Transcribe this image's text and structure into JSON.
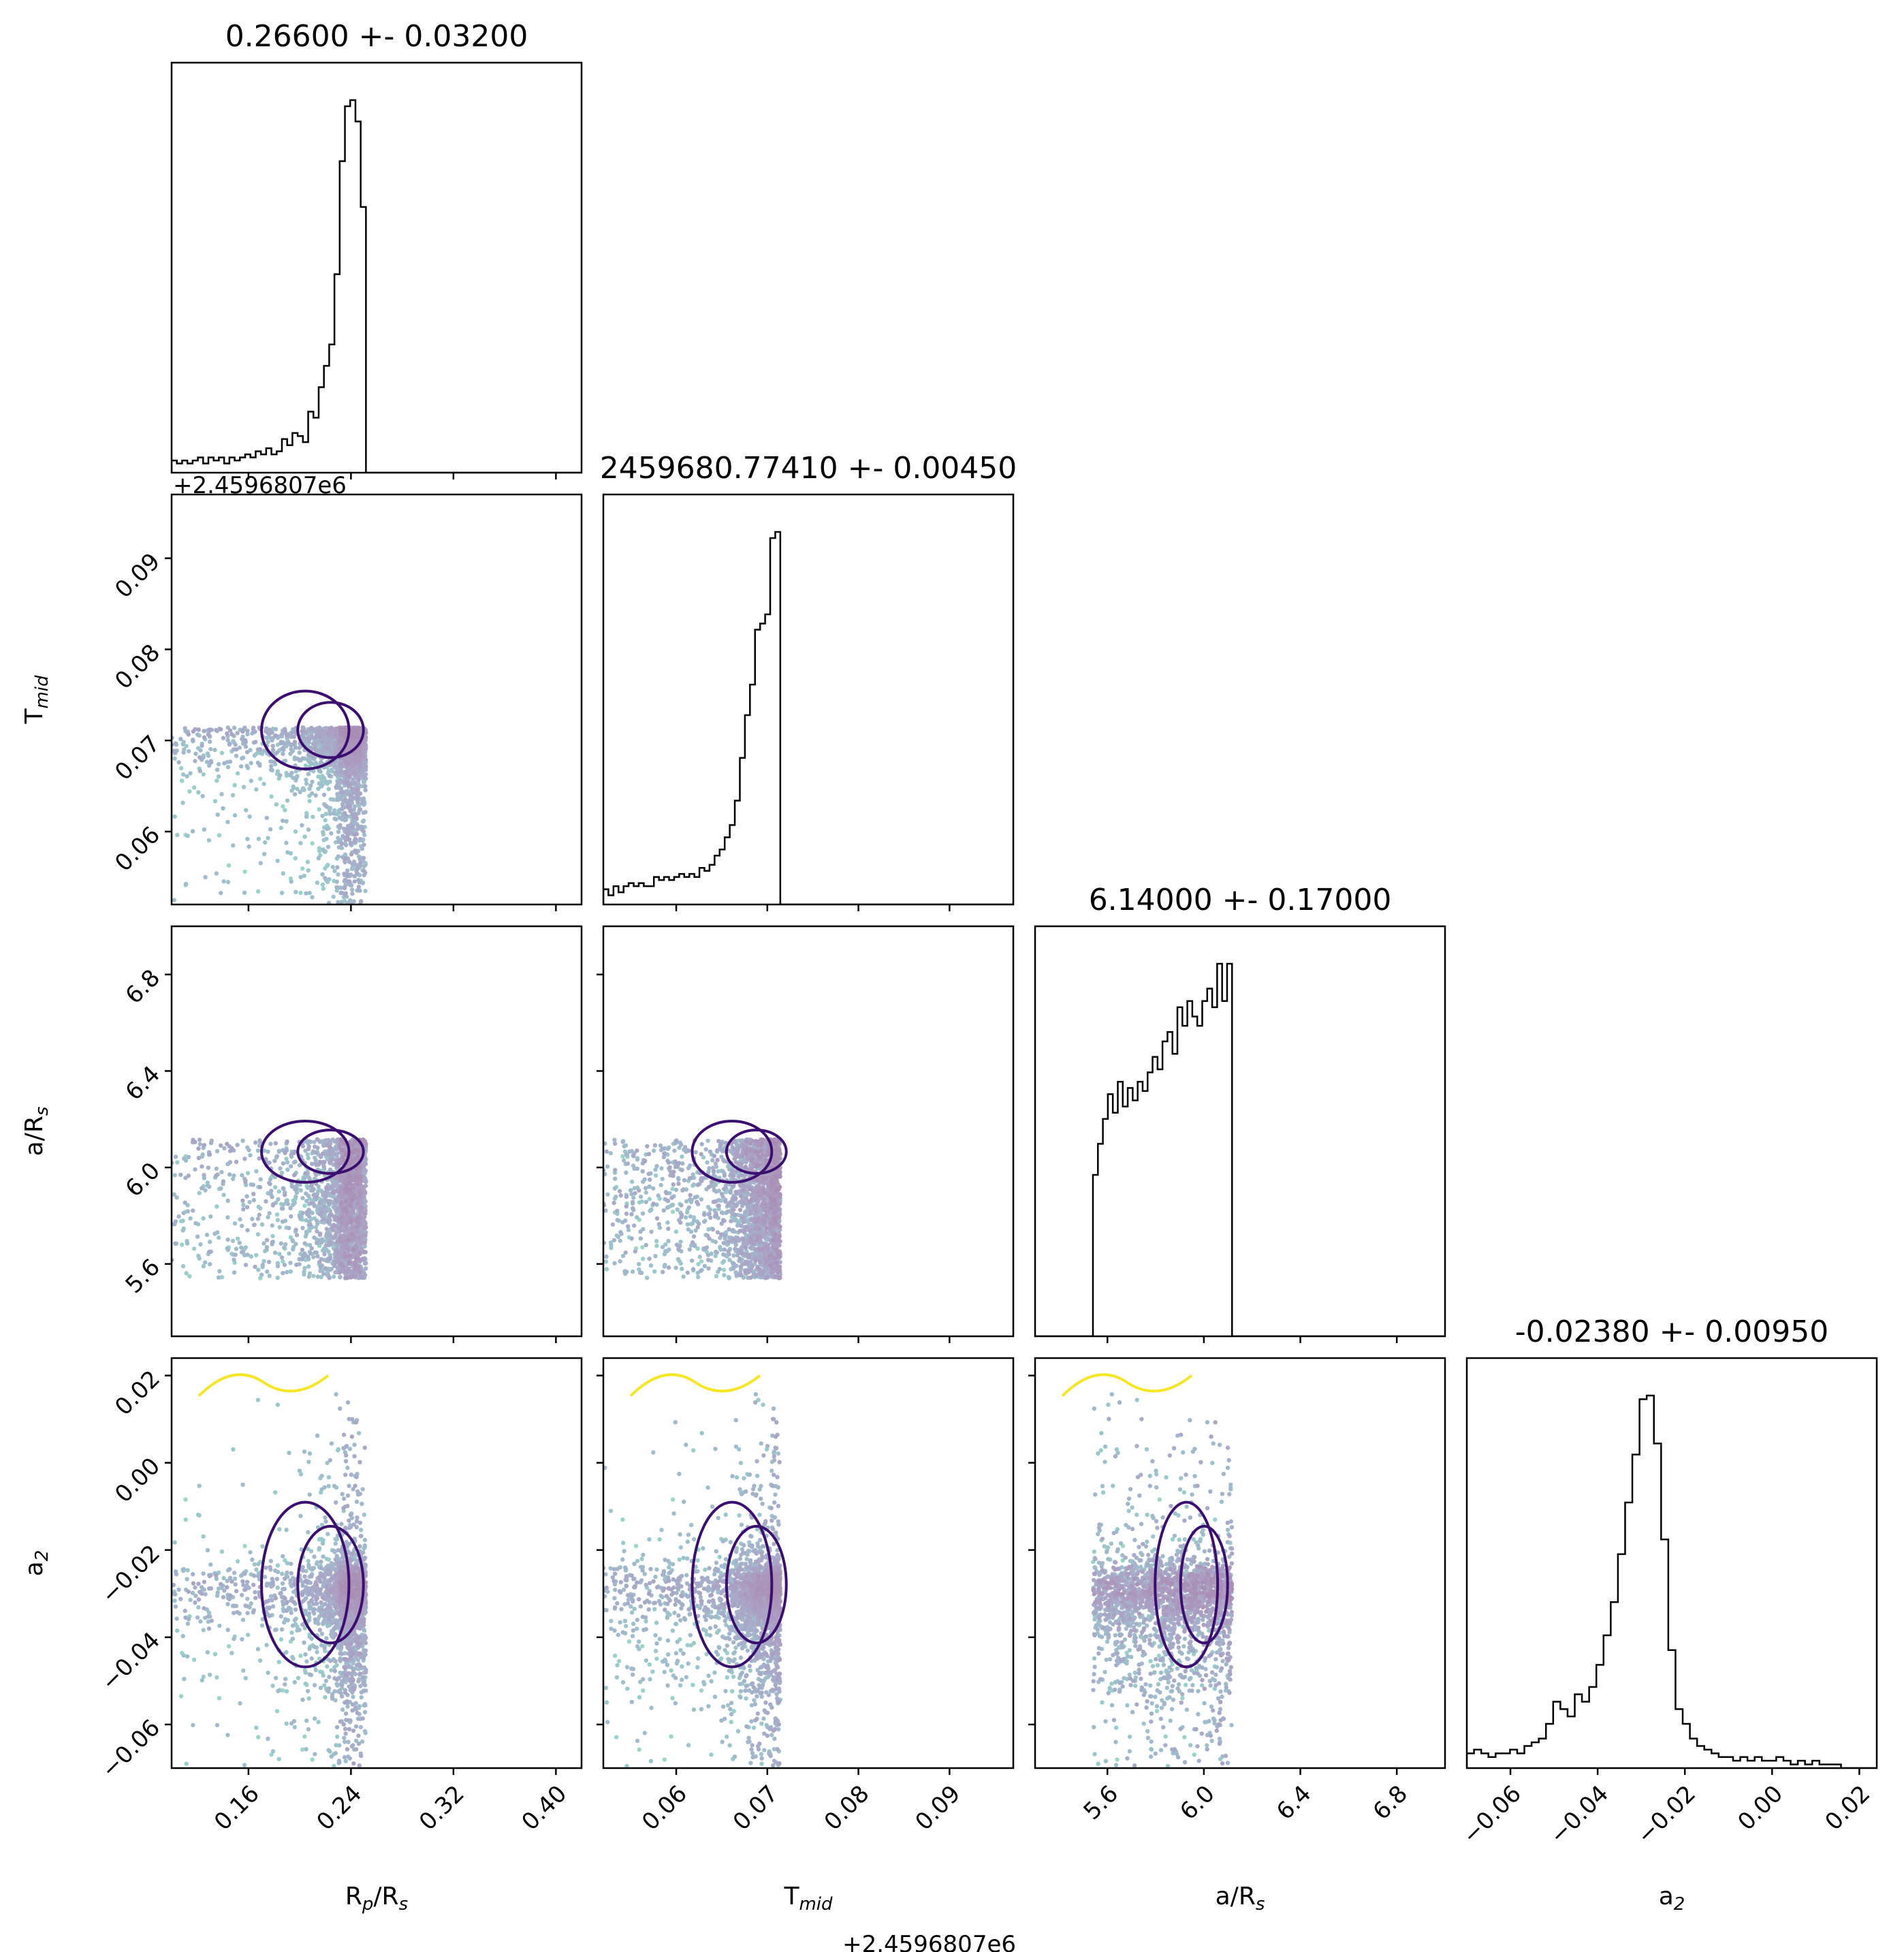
{
  "chart_data": {
    "type": "corner",
    "parameters": [
      "R_p/R_s",
      "T_mid",
      "a/R_s",
      "a_2"
    ],
    "axis_labels": {
      "R_p/R_s": {
        "main": "R",
        "sub": "p",
        "rest": "/R",
        "sub2": "s"
      },
      "T_mid": {
        "main": "T",
        "sub": "mid"
      },
      "a/R_s": {
        "main": "a/R",
        "sub": "s"
      },
      "a_2": {
        "main": "a",
        "sub": "2"
      }
    },
    "titles": [
      "0.26600 +- 0.03200",
      "2459680.77410 +- 0.00450",
      "6.14000 +- 0.17000",
      "-0.02380 +- 0.00950"
    ],
    "offset_label": "+2.4596807e6",
    "ranges": {
      "R_p/R_s": [
        0.1,
        0.42
      ],
      "T_mid": [
        0.052,
        0.097
      ],
      "a/R_s": [
        5.3,
        7.0
      ],
      "a_2": [
        -0.07,
        0.024
      ]
    },
    "ticks": {
      "R_p/R_s": {
        "values": [
          0.16,
          0.24,
          0.32,
          0.4
        ],
        "labels": [
          "0.16",
          "0.24",
          "0.32",
          "0.40"
        ]
      },
      "T_mid": {
        "values": [
          0.06,
          0.07,
          0.08,
          0.09
        ],
        "labels": [
          "0.06",
          "0.07",
          "0.08",
          "0.09"
        ]
      },
      "a/R_s": {
        "values": [
          5.6,
          6.0,
          6.4,
          6.8
        ],
        "labels": [
          "5.6",
          "6.0",
          "6.4",
          "6.8"
        ]
      },
      "a_2": {
        "values": [
          -0.06,
          -0.04,
          -0.02,
          0.0,
          0.02
        ],
        "labels": [
          "−0.06",
          "−0.04",
          "−0.02",
          "0.00",
          "0.02"
        ]
      }
    },
    "histograms": {
      "R_p/R_s": {
        "x_start": 0.1,
        "bin_width": 0.0041,
        "values": [
          4,
          3,
          4,
          3,
          4,
          5,
          3,
          5,
          4,
          5,
          3,
          5,
          4,
          5,
          6,
          5,
          7,
          6,
          8,
          6,
          7,
          11,
          9,
          13,
          12,
          10,
          20,
          18,
          28,
          35,
          42,
          65,
          102,
          120,
          122,
          115,
          87
        ]
      },
      "T_mid": {
        "x_start": 0.052,
        "bin_width": 0.000555,
        "values": [
          5,
          3,
          6,
          4,
          6,
          7,
          6,
          7,
          6,
          6,
          9,
          8,
          9,
          8,
          9,
          10,
          9,
          10,
          9,
          12,
          11,
          13,
          16,
          18,
          22,
          26,
          34,
          48,
          62,
          72,
          90,
          92,
          95,
          120,
          122
        ]
      },
      "a/R_s": {
        "x_start": 5.54,
        "bin_width": 0.0206,
        "values": [
          52,
          62,
          70,
          78,
          72,
          82,
          74,
          80,
          76,
          82,
          79,
          85,
          90,
          86,
          95,
          98,
          91,
          106,
          100,
          108,
          103,
          100,
          108,
          112,
          106,
          120,
          108,
          120
        ]
      },
      "a_2": {
        "x_start": -0.07,
        "bin_width": 0.00165,
        "values": [
          4,
          5,
          4,
          3,
          4,
          4,
          5,
          4,
          6,
          7,
          8,
          12,
          18,
          16,
          14,
          20,
          18,
          22,
          28,
          36,
          45,
          58,
          72,
          85,
          100,
          101,
          88,
          62,
          32,
          16,
          12,
          8,
          6,
          5,
          4,
          3,
          3,
          2,
          3,
          2,
          3,
          2,
          2,
          3,
          2,
          1,
          2,
          1,
          2,
          1,
          1,
          1
        ]
      }
    },
    "scatter_colormap": "viridis",
    "contour_color": "#3b0f70",
    "outer_contour_color": "#f5e626",
    "histogram_color": "#000000",
    "grid": false
  }
}
